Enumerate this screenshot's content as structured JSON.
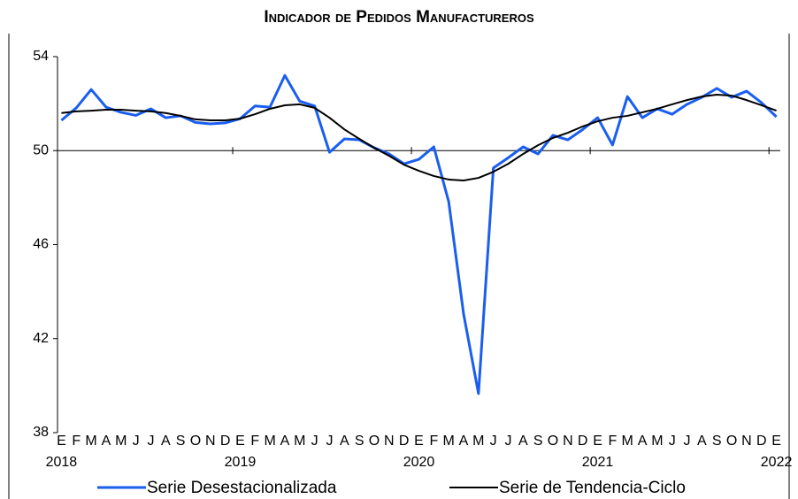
{
  "chart_data": {
    "type": "line",
    "title": "Indicador de Pedidos Manufactureros",
    "categories": [
      "E",
      "F",
      "M",
      "A",
      "M",
      "J",
      "J",
      "A",
      "S",
      "O",
      "N",
      "D",
      "E",
      "F",
      "M",
      "A",
      "M",
      "J",
      "J",
      "A",
      "S",
      "O",
      "N",
      "D",
      "E",
      "F",
      "M",
      "A",
      "M",
      "J",
      "J",
      "A",
      "S",
      "O",
      "N",
      "D",
      "E",
      "F",
      "M",
      "A",
      "M",
      "J",
      "J",
      "A",
      "S",
      "O",
      "N",
      "D",
      "E"
    ],
    "years": [
      "2018",
      null,
      null,
      null,
      null,
      null,
      null,
      null,
      null,
      null,
      null,
      null,
      "2019",
      null,
      null,
      null,
      null,
      null,
      null,
      null,
      null,
      null,
      null,
      null,
      "2020",
      null,
      null,
      null,
      null,
      null,
      null,
      null,
      null,
      null,
      null,
      null,
      "2021",
      null,
      null,
      null,
      null,
      null,
      null,
      null,
      null,
      null,
      null,
      null,
      "2022"
    ],
    "series": [
      {
        "name": "Serie Desestacionalizada",
        "color": "#1a5ef0",
        "width": 3,
        "values": [
          51.29,
          51.82,
          52.6,
          51.85,
          51.63,
          51.5,
          51.78,
          51.4,
          51.48,
          51.2,
          51.14,
          51.18,
          51.36,
          51.9,
          51.85,
          53.2,
          52.1,
          51.9,
          49.93,
          50.5,
          50.46,
          50.12,
          49.86,
          49.44,
          49.63,
          50.16,
          47.83,
          43.05,
          39.66,
          49.26,
          49.7,
          50.16,
          49.86,
          50.65,
          50.46,
          50.9,
          51.4,
          50.24,
          52.3,
          51.4,
          51.78,
          51.55,
          51.97,
          52.27,
          52.65,
          52.27,
          52.53,
          52.04,
          51.44
        ]
      },
      {
        "name": "Serie de Tendencia-Ciclo",
        "color": "#000000",
        "width": 2,
        "values": [
          51.6,
          51.67,
          51.7,
          51.74,
          51.74,
          51.7,
          51.67,
          51.6,
          51.48,
          51.33,
          51.29,
          51.29,
          51.36,
          51.55,
          51.78,
          51.93,
          51.97,
          51.82,
          51.4,
          50.9,
          50.5,
          50.12,
          49.78,
          49.4,
          49.14,
          48.92,
          48.77,
          48.73,
          48.84,
          49.1,
          49.44,
          49.86,
          50.23,
          50.54,
          50.76,
          51.03,
          51.25,
          51.4,
          51.48,
          51.63,
          51.78,
          51.97,
          52.15,
          52.3,
          52.38,
          52.34,
          52.15,
          51.93,
          51.7
        ]
      }
    ],
    "ylim": [
      38,
      54
    ],
    "yticks": [
      38,
      42,
      46,
      50,
      54
    ],
    "x_axis_at": 50,
    "grid": false
  }
}
